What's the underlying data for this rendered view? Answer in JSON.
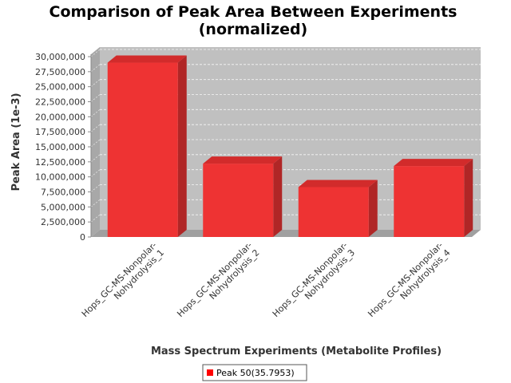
{
  "chart_data": {
    "type": "bar",
    "title": "Comparison of Peak Area Between Experiments",
    "subtitle": "(normalized)",
    "xlabel": "Mass Spectrum Experiments (Metabolite Profiles)",
    "ylabel": "Peak Area (1e-3)",
    "categories": [
      [
        "Hops_GC-MS-Nonpolar-",
        "Nohydrolysis_1"
      ],
      [
        "Hops_GC-MS-Nonpolar-",
        "Nohydrolysis_2"
      ],
      [
        "Hops_GC-MS-Nonpolar-",
        "Nohydrolysis_3"
      ],
      [
        "Hops_GC-MS-Nonpolar-",
        "Nohydrolysis_4"
      ]
    ],
    "series": [
      {
        "name": "Peak 50(35.7953)",
        "values": [
          29000000,
          12200000,
          8300000,
          11800000
        ]
      }
    ],
    "ylim": [
      0,
      31000000
    ],
    "yticks": [
      {
        "value": 0,
        "label": "0"
      },
      {
        "value": 2500000,
        "label": "2,500,000"
      },
      {
        "value": 5000000,
        "label": "5,000,000"
      },
      {
        "value": 7500000,
        "label": "7,500,000"
      },
      {
        "value": 10000000,
        "label": "10,000,000"
      },
      {
        "value": 12500000,
        "label": "12,500,000"
      },
      {
        "value": 15000000,
        "label": "15,000,000"
      },
      {
        "value": 17500000,
        "label": "17,500,000"
      },
      {
        "value": 20000000,
        "label": "20,000,000"
      },
      {
        "value": 22500000,
        "label": "22,500,000"
      },
      {
        "value": 25000000,
        "label": "25,000,000"
      },
      {
        "value": 27500000,
        "label": "27,500,000"
      },
      {
        "value": 30000000,
        "label": "30,000,000"
      }
    ],
    "grid": true,
    "legend_position": "bottom",
    "colors": {
      "bar_front": "#ee3333",
      "bar_top": "#d22b2b",
      "bar_side": "#b02626",
      "plot_back": "#c0c0c0",
      "plot_wall": "#a8a8a8",
      "plot_floor": "#a0a0a0",
      "legend_swatch": "#ff0000"
    }
  }
}
